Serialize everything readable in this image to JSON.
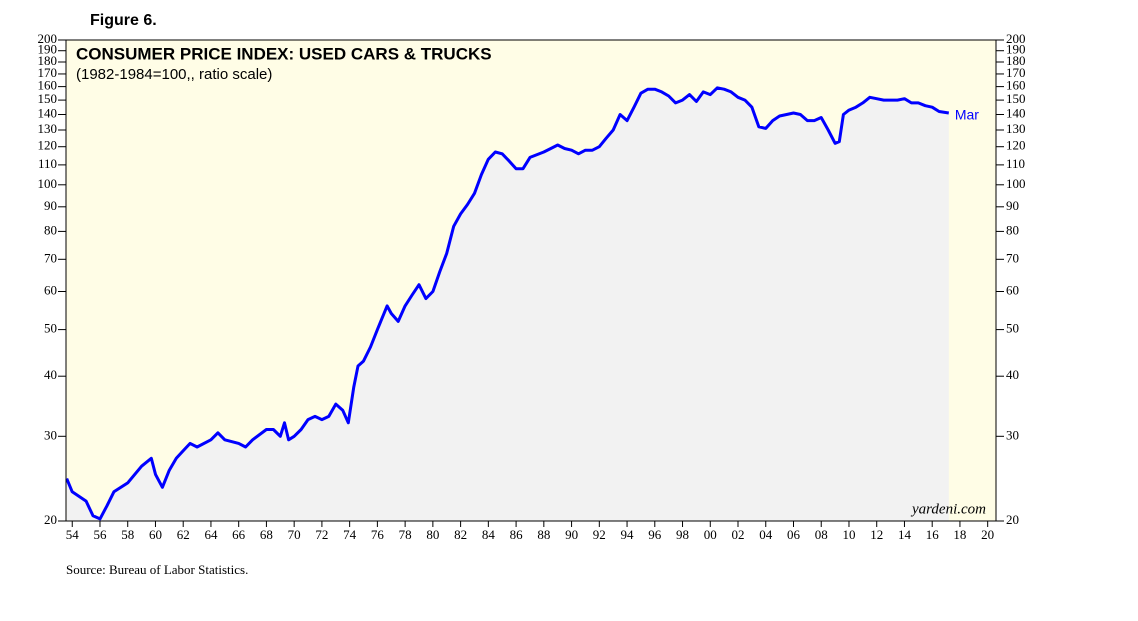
{
  "chart_data": {
    "type": "line",
    "figure_label": "Figure 6.",
    "title": "CONSUMER PRICE INDEX: USED CARS & TRUCKS",
    "subtitle": "(1982-1984=100,, ratio scale)",
    "watermark": "yardeni.com",
    "source": "Source: Bureau of Labor Statistics.",
    "end_label": "Mar",
    "log_scale": true,
    "area_fill": "#f2f2f2",
    "background": "#fffde6",
    "xlim": [
      1953.55,
      2020.6
    ],
    "ylim": [
      20,
      200
    ],
    "yticks": [
      20,
      30,
      40,
      50,
      60,
      70,
      80,
      90,
      100,
      110,
      120,
      130,
      140,
      150,
      160,
      170,
      180,
      190,
      200
    ],
    "xticks": [
      {
        "value": 1954,
        "label": "54"
      },
      {
        "value": 1956,
        "label": "56"
      },
      {
        "value": 1958,
        "label": "58"
      },
      {
        "value": 1960,
        "label": "60"
      },
      {
        "value": 1962,
        "label": "62"
      },
      {
        "value": 1964,
        "label": "64"
      },
      {
        "value": 1966,
        "label": "66"
      },
      {
        "value": 1968,
        "label": "68"
      },
      {
        "value": 1970,
        "label": "70"
      },
      {
        "value": 1972,
        "label": "72"
      },
      {
        "value": 1974,
        "label": "74"
      },
      {
        "value": 1976,
        "label": "76"
      },
      {
        "value": 1978,
        "label": "78"
      },
      {
        "value": 1980,
        "label": "80"
      },
      {
        "value": 1982,
        "label": "82"
      },
      {
        "value": 1984,
        "label": "84"
      },
      {
        "value": 1986,
        "label": "86"
      },
      {
        "value": 1988,
        "label": "88"
      },
      {
        "value": 1990,
        "label": "90"
      },
      {
        "value": 1992,
        "label": "92"
      },
      {
        "value": 1994,
        "label": "94"
      },
      {
        "value": 1996,
        "label": "96"
      },
      {
        "value": 1998,
        "label": "98"
      },
      {
        "value": 2000,
        "label": "00"
      },
      {
        "value": 2002,
        "label": "02"
      },
      {
        "value": 2004,
        "label": "04"
      },
      {
        "value": 2006,
        "label": "06"
      },
      {
        "value": 2008,
        "label": "08"
      },
      {
        "value": 2010,
        "label": "10"
      },
      {
        "value": 2012,
        "label": "12"
      },
      {
        "value": 2014,
        "label": "14"
      },
      {
        "value": 2016,
        "label": "16"
      },
      {
        "value": 2018,
        "label": "18"
      },
      {
        "value": 2020,
        "label": "20"
      }
    ],
    "series": [
      {
        "color": "#0000ff",
        "x": [
          1953.6,
          1954.0,
          1955.0,
          1955.5,
          1956.0,
          1956.5,
          1957.0,
          1958.0,
          1959.0,
          1959.7,
          1960.0,
          1960.5,
          1961.0,
          1961.5,
          1962.0,
          1962.5,
          1963.0,
          1964.0,
          1964.5,
          1965.0,
          1966.0,
          1966.5,
          1967.0,
          1968.0,
          1968.5,
          1969.0,
          1969.3,
          1969.6,
          1970.0,
          1970.5,
          1971.0,
          1971.5,
          1972.0,
          1972.5,
          1973.0,
          1973.5,
          1973.9,
          1974.3,
          1974.6,
          1975.0,
          1975.5,
          1976.0,
          1976.7,
          1977.0,
          1977.5,
          1978.0,
          1978.5,
          1979.0,
          1979.5,
          1980.0,
          1980.5,
          1981.0,
          1981.5,
          1982.0,
          1982.5,
          1983.0,
          1983.5,
          1984.0,
          1984.5,
          1985.0,
          1985.5,
          1986.0,
          1986.5,
          1987.0,
          1988.0,
          1988.5,
          1989.0,
          1989.5,
          1990.0,
          1990.5,
          1991.0,
          1991.5,
          1992.0,
          1992.5,
          1993.0,
          1993.5,
          1994.0,
          1994.5,
          1995.0,
          1995.5,
          1996.0,
          1996.5,
          1997.0,
          1997.5,
          1998.0,
          1998.5,
          1999.0,
          1999.5,
          2000.0,
          2000.5,
          2001.0,
          2001.5,
          2002.0,
          2002.5,
          2003.0,
          2003.5,
          2004.0,
          2004.5,
          2005.0,
          2005.5,
          2006.0,
          2006.5,
          2007.0,
          2007.5,
          2008.0,
          2008.5,
          2009.0,
          2009.3,
          2009.6,
          2010.0,
          2010.5,
          2011.0,
          2011.5,
          2012.0,
          2012.5,
          2013.0,
          2013.5,
          2014.0,
          2014.5,
          2015.0,
          2015.5,
          2016.0,
          2016.5,
          2017.2
        ],
        "values": [
          24.5,
          23,
          22,
          20.5,
          20.2,
          21.5,
          23,
          24,
          26,
          27,
          25,
          23.5,
          25.5,
          27,
          28,
          29,
          28.5,
          29.5,
          30.5,
          29.5,
          29,
          28.5,
          29.5,
          31,
          31,
          30,
          32,
          29.5,
          30,
          31,
          32.5,
          33,
          32.5,
          33,
          35,
          34,
          32,
          38,
          42,
          43,
          46,
          50,
          56,
          54,
          52,
          56,
          59,
          62,
          58,
          60,
          66,
          72,
          82,
          87,
          91,
          96,
          105,
          113,
          117,
          116,
          112,
          108,
          108,
          114,
          117,
          119,
          121,
          119,
          118,
          116,
          118,
          118,
          120,
          125,
          130,
          140,
          136,
          145,
          155,
          158,
          158,
          156,
          153,
          148,
          150,
          154,
          149,
          156,
          154,
          159,
          158,
          156,
          152,
          150,
          145,
          132,
          131,
          136,
          139,
          140,
          141,
          140,
          136,
          136,
          138,
          130,
          122,
          123,
          140,
          143,
          145,
          148,
          152,
          151,
          150,
          150,
          150,
          151,
          148,
          148,
          146,
          145,
          142,
          141
        ]
      }
    ]
  }
}
